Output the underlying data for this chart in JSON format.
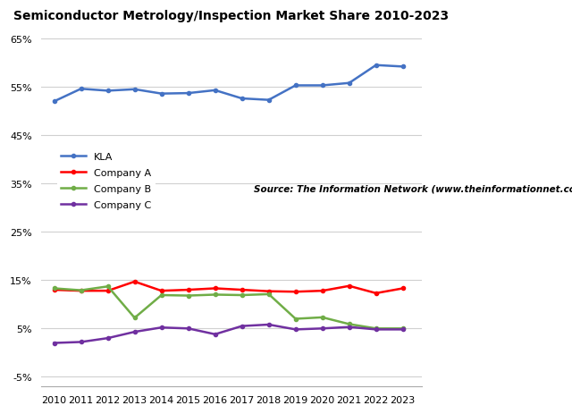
{
  "title": "Semiconductor Metrology/Inspection Market Share 2010-2023",
  "source_text": "Source: The Information Network (www.theinformationnet.com)",
  "years": [
    2010,
    2011,
    2012,
    2013,
    2014,
    2015,
    2016,
    2017,
    2018,
    2019,
    2020,
    2021,
    2022,
    2023
  ],
  "KLA_data": [
    0.52,
    0.546,
    0.542,
    0.545,
    0.536,
    0.537,
    0.543,
    0.526,
    0.523,
    0.553,
    0.553,
    0.558,
    0.595,
    0.592
  ],
  "CompanyA": [
    0.13,
    0.128,
    0.128,
    0.147,
    0.128,
    0.13,
    0.133,
    0.13,
    0.127,
    0.126,
    0.128,
    0.138,
    0.123,
    0.133
  ],
  "CompanyB": [
    0.133,
    0.129,
    0.137,
    0.072,
    0.119,
    0.118,
    0.12,
    0.119,
    0.121,
    0.07,
    0.073,
    0.059,
    0.05,
    0.05
  ],
  "CompanyC": [
    0.02,
    0.022,
    0.03,
    0.043,
    0.052,
    0.05,
    0.038,
    0.055,
    0.058,
    0.048,
    0.05,
    0.053,
    0.048,
    0.048
  ],
  "kla_color": "#4472C4",
  "compA_color": "#FF0000",
  "compB_color": "#70AD47",
  "compC_color": "#7030A0",
  "background_color": "#FFFFFF",
  "grid_color": "#D0D0D0",
  "title_fontsize": 10,
  "tick_fontsize": 8,
  "legend_fontsize": 8,
  "source_fontsize": 7.5
}
